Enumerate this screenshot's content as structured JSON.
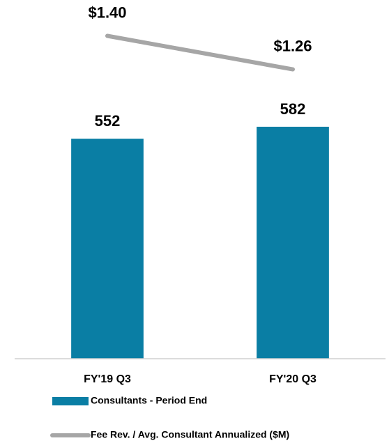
{
  "chart_data": {
    "type": "bar",
    "categories": [
      "FY'19 Q3",
      "FY'20 Q3"
    ],
    "ylim": [
      0,
      900
    ],
    "y2lim": [
      0.05,
      1.55
    ],
    "series": [
      {
        "name": "Consultants - Period End",
        "type": "bar",
        "color": "#0a7ea4",
        "values": [
          552,
          582
        ]
      },
      {
        "name": "Fee Rev. / Avg. Consultant Annualized ($M)",
        "type": "line",
        "axis": "y2",
        "color": "#a6a6a6",
        "values": [
          1.4,
          1.26
        ],
        "value_labels": [
          "$1.40",
          "$1.26"
        ]
      }
    ]
  }
}
